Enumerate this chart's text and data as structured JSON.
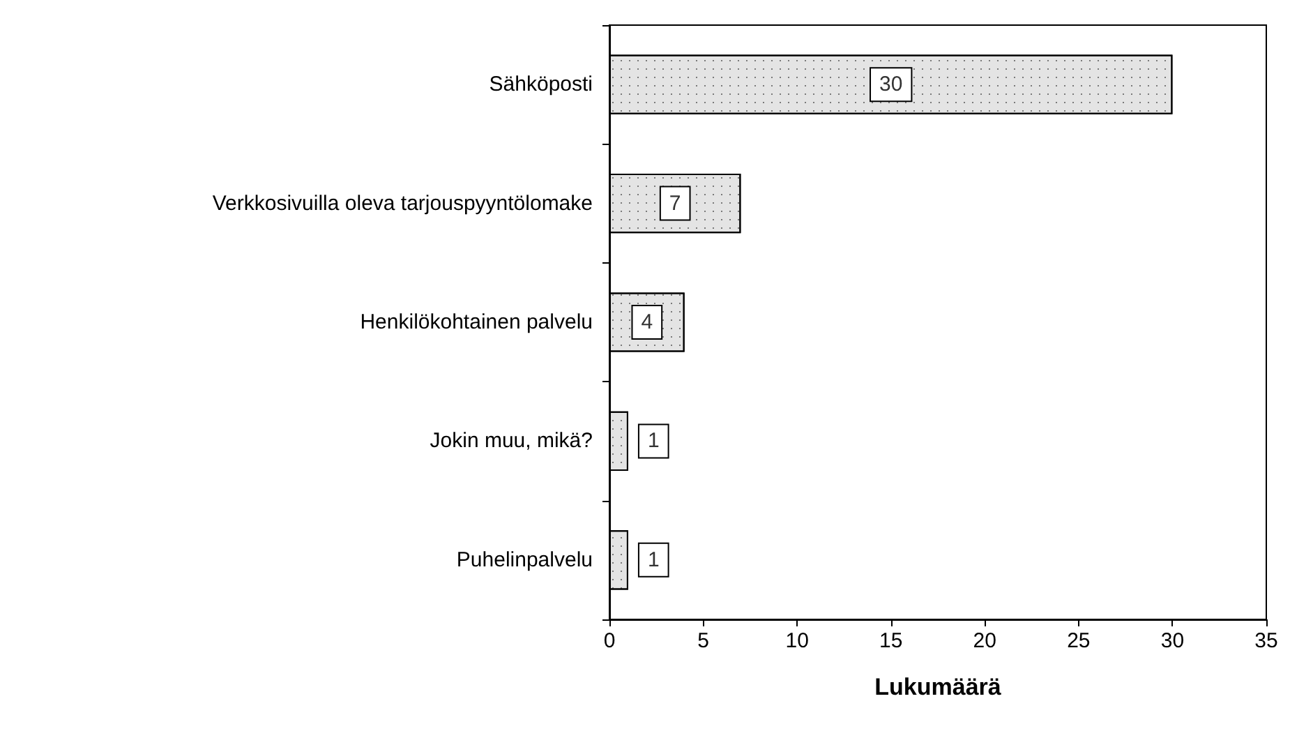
{
  "chart_data": {
    "type": "bar",
    "orientation": "horizontal",
    "xlabel": "Lukumäärä",
    "categories": [
      "Sähköposti",
      "Verkkosivuilla oleva tarjouspyyntölomake",
      "Henkilökohtainen palvelu",
      "Jokin muu, mikä?",
      "Puhelinpalvelu"
    ],
    "values": [
      30,
      7,
      4,
      1,
      1
    ],
    "color": "#e4e4e4",
    "data_labels": true,
    "xlim": [
      0,
      35
    ],
    "xticks": [
      0,
      5,
      10,
      15,
      20,
      25,
      30,
      35
    ],
    "grid": false
  }
}
